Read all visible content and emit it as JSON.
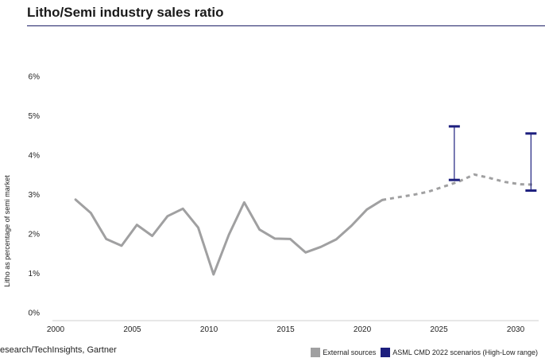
{
  "title": "Litho/Semi industry sales ratio",
  "source": "esearch/TechInsights, Gartner",
  "colors": {
    "external": "#a0a0a1",
    "asml": "#1d1f7e",
    "rule": "#1d1f66"
  },
  "chart_data": {
    "type": "line",
    "ylabel": "Litho as percentage of semi market",
    "xlim": [
      2000,
      2031.5
    ],
    "ylim": [
      0,
      6
    ],
    "x_ticks": [
      "2000",
      "2005",
      "2010",
      "2015",
      "2020",
      "2025",
      "2030"
    ],
    "y_ticks": [
      "0%",
      "1%",
      "2%",
      "3%",
      "4%",
      "5%",
      "6%"
    ],
    "grid": false,
    "legend_position": "bottom-right",
    "series": [
      {
        "name": "External sources",
        "style": "solid",
        "points": [
          [
            2001.3,
            2.87
          ],
          [
            2002.3,
            2.53
          ],
          [
            2003.3,
            1.87
          ],
          [
            2004.3,
            1.7
          ],
          [
            2005.3,
            2.23
          ],
          [
            2006.3,
            1.95
          ],
          [
            2007.3,
            2.45
          ],
          [
            2008.3,
            2.64
          ],
          [
            2009.3,
            2.16
          ],
          [
            2010.3,
            0.97
          ],
          [
            2011.3,
            1.98
          ],
          [
            2012.3,
            2.8
          ],
          [
            2013.3,
            2.11
          ],
          [
            2014.3,
            1.88
          ],
          [
            2015.3,
            1.87
          ],
          [
            2016.3,
            1.53
          ],
          [
            2017.3,
            1.67
          ],
          [
            2018.3,
            1.86
          ],
          [
            2019.3,
            2.21
          ],
          [
            2020.3,
            2.62
          ],
          [
            2021.3,
            2.86
          ]
        ]
      },
      {
        "name": "External sources (projection)",
        "style": "dashed",
        "points": [
          [
            2021.3,
            2.86
          ],
          [
            2022.3,
            2.93
          ],
          [
            2023.3,
            2.99
          ],
          [
            2024.3,
            3.07
          ],
          [
            2025.3,
            3.2
          ],
          [
            2026.3,
            3.33
          ],
          [
            2027.3,
            3.51
          ],
          [
            2028.3,
            3.42
          ],
          [
            2029.3,
            3.32
          ],
          [
            2030.3,
            3.26
          ],
          [
            2031.3,
            3.25
          ]
        ]
      }
    ],
    "ranges": [
      {
        "name": "ASML CMD 2022 scenarios (High-Low range)",
        "x": 2026.0,
        "low": 3.37,
        "high": 4.73
      },
      {
        "name": "ASML CMD 2022 scenarios (High-Low range)",
        "x": 2031.0,
        "low": 3.1,
        "high": 4.55
      }
    ],
    "legend": [
      {
        "label": "External sources",
        "color": "#a0a0a1"
      },
      {
        "label": "ASML CMD 2022 scenarios (High-Low range)",
        "color": "#1d1f7e"
      }
    ]
  }
}
